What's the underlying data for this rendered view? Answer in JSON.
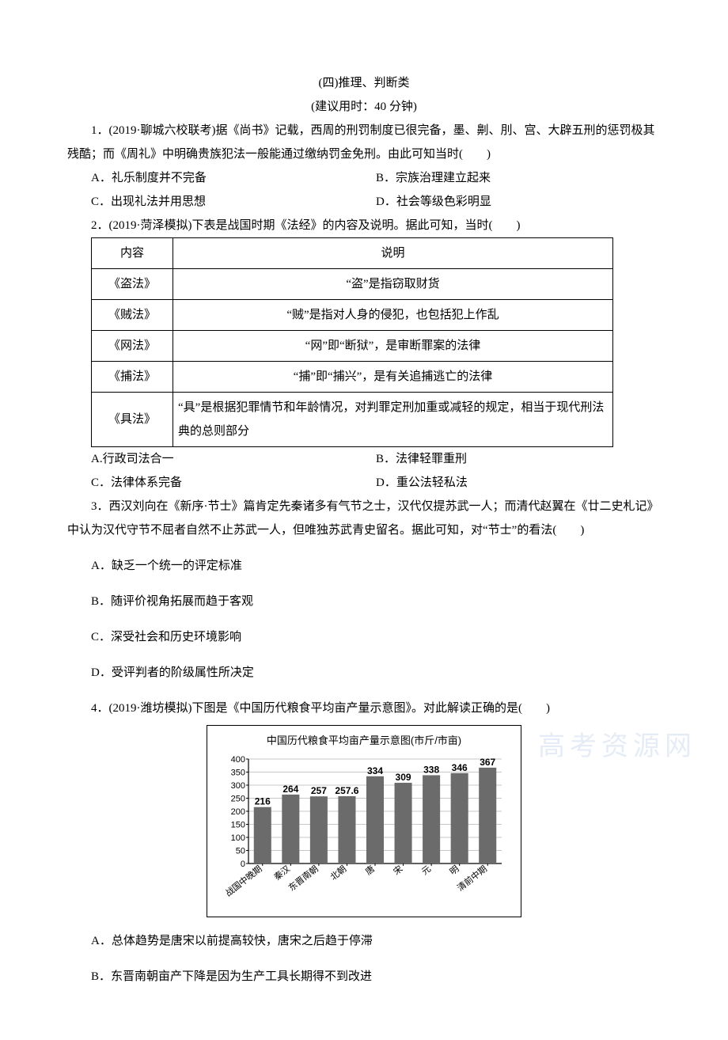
{
  "header": {
    "title": "(四)推理、判断类",
    "subtitle": "(建议用时：40 分钟)"
  },
  "q1": {
    "stem": "1．(2019·聊城六校联考)据《尚书》记载，西周的刑罚制度已很完备，墨、劓、刖、宫、大辟五刑的惩罚极其残酷；而《周礼》中明确贵族犯法一般能通过缴纳罚金免刑。由此可知当时(　　)",
    "A": "A．礼乐制度并不完备",
    "B": "B．宗族治理建立起来",
    "C": "C．出现礼法并用思想",
    "D": "D．社会等级色彩明显"
  },
  "q2": {
    "stem": "2．(2019·菏泽模拟)下表是战国时期《法经》的内容及说明。据此可知，当时(　　)",
    "table": {
      "head_col0": "内容",
      "head_col1": "说明",
      "rows": [
        {
          "c0": "《盗法》",
          "c1": "“盗”是指窃取财货"
        },
        {
          "c0": "《贼法》",
          "c1": "“贼”是指对人身的侵犯，也包括犯上作乱"
        },
        {
          "c0": "《网法》",
          "c1": "“网”即“断狱”，是审断罪案的法律"
        },
        {
          "c0": "《捕法》",
          "c1": "“捕”即“捕兴”，是有关追捕逃亡的法律"
        },
        {
          "c0": "《具法》",
          "c1": "“具”是根据犯罪情节和年龄情况，对判罪定刑加重或减轻的规定，相当于现代刑法典的总则部分"
        }
      ]
    },
    "A": "A.行政司法合一",
    "B": "B．法律轻罪重刑",
    "C": "C．法律体系完备",
    "D": "D．重公法轻私法"
  },
  "q3": {
    "stem": "3．西汉刘向在《新序·节士》篇肯定先秦诸多有气节之士，汉代仅提苏武一人；而清代赵翼在《廿二史札记》中认为汉代守节不屈者自然不止苏武一人，但唯独苏武青史留名。据此可知，对“节士”的看法(　　)",
    "A": "A．缺乏一个统一的评定标准",
    "B": "B．随评价视角拓展而趋于客观",
    "C": "C．深受社会和历史环境影响",
    "D": "D．受评判者的阶级属性所决定"
  },
  "q4": {
    "stem": "4．(2019·潍坊模拟)下图是《中国历代粮食平均亩产量示意图》。对此解读正确的是(　　)",
    "chart": {
      "title": "中国历代粮食平均亩产量示意图(市斤/市亩)",
      "categories": [
        "战国中晚期",
        "秦汉",
        "东晋南朝",
        "北朝",
        "唐",
        "宋",
        "元",
        "明",
        "清前中期"
      ],
      "values": [
        216,
        264,
        257,
        257.6,
        334,
        309,
        338,
        346,
        367
      ],
      "ylim": [
        0,
        400
      ],
      "ytick_step": 50,
      "bar_color": "#6b6b6b",
      "grid_color": "#b5b5b5",
      "axis_color": "#000000",
      "background_color": "#ffffff",
      "bar_label_fontsize": 12,
      "axis_label_fontsize": 11,
      "title_fontsize": 13
    },
    "A": "A．总体趋势是唐宋以前提高较快，唐宋之后趋于停滞",
    "B": "B．东晋南朝亩产下降是因为生产工具长期得不到改进"
  },
  "watermark": "高考资源网"
}
